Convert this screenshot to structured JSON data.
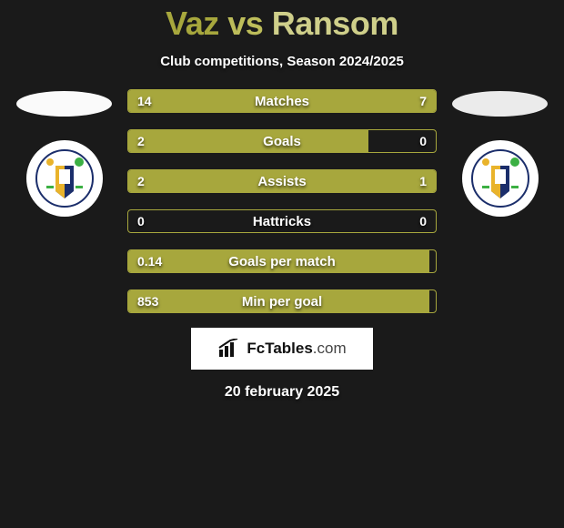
{
  "header": {
    "player1": "Vaz",
    "vs": "vs",
    "player2": "Ransom",
    "subtitle": "Club competitions, Season 2024/2025"
  },
  "colors": {
    "accent": "#a7a73d",
    "accent_light": "#cfcf8a",
    "bg": "#1a1a1a",
    "text": "#ffffff",
    "logo_bg": "#ffffff"
  },
  "stats": [
    {
      "label": "Matches",
      "left_val": "14",
      "right_val": "7",
      "left_pct": 66.7,
      "right_pct": 33.3
    },
    {
      "label": "Goals",
      "left_val": "2",
      "right_val": "0",
      "left_pct": 78.0,
      "right_pct": 0.0
    },
    {
      "label": "Assists",
      "left_val": "2",
      "right_val": "1",
      "left_pct": 66.7,
      "right_pct": 33.3
    },
    {
      "label": "Hattricks",
      "left_val": "0",
      "right_val": "0",
      "left_pct": 0.0,
      "right_pct": 0.0
    },
    {
      "label": "Goals per match",
      "left_val": "0.14",
      "right_val": "",
      "left_pct": 98.0,
      "right_pct": 0.0
    },
    {
      "label": "Min per goal",
      "left_val": "853",
      "right_val": "",
      "left_pct": 98.0,
      "right_pct": 0.0
    }
  ],
  "brand": {
    "name": "FcTables",
    "domain": ".com"
  },
  "footer": {
    "date": "20 february 2025"
  }
}
